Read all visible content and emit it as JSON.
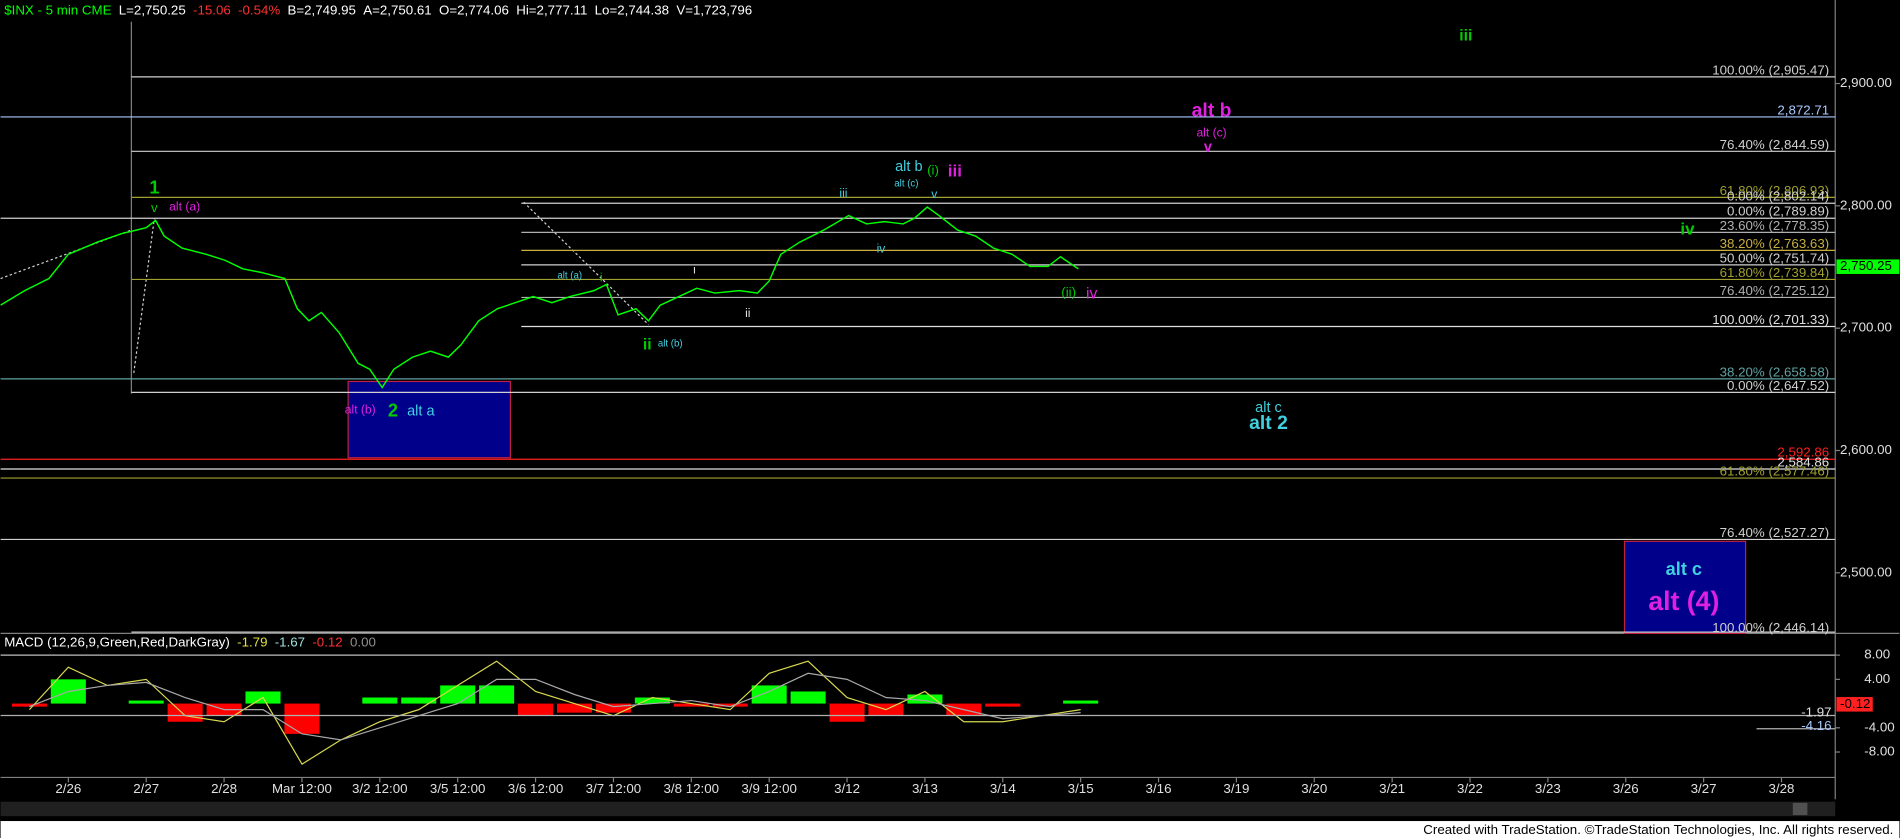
{
  "chart_data": [
    {
      "type": "line",
      "header": [
        {
          "text": "$INX - 5 min CME",
          "color": "#00ff00"
        },
        {
          "text": "L=2,750.25",
          "color": "#ffffff"
        },
        {
          "text": "-15.06",
          "color": "#ff3030"
        },
        {
          "text": "-0.54%",
          "color": "#ff3030"
        },
        {
          "text": "B=2,749.95",
          "color": "#ffffff"
        },
        {
          "text": "A=2,750.61",
          "color": "#ffffff"
        },
        {
          "text": "O=2,774.06",
          "color": "#ffffff"
        },
        {
          "text": "Hi=2,777.11",
          "color": "#ffffff"
        },
        {
          "text": "Lo=2,744.38",
          "color": "#ffffff"
        },
        {
          "text": "V=1,723,796",
          "color": "#ffffff"
        }
      ],
      "categories": [
        "2/26",
        "2/27",
        "2/28",
        "Mar 12:00",
        "3/2 12:00",
        "3/5 12:00",
        "3/6 12:00",
        "3/7 12:00",
        "3/8 12:00",
        "3/9 12:00",
        "3/12",
        "3/13",
        "3/14",
        "3/15",
        "3/16",
        "3/19",
        "3/20",
        "3/21",
        "3/22",
        "3/23",
        "3/26",
        "3/27",
        "3/28"
      ],
      "xlim": [
        -0.87,
        22.69
      ],
      "ylim": [
        2450.5,
        2968.3
      ],
      "yticks": [
        {
          "value": 2500,
          "label": "2,500.00"
        },
        {
          "value": 2600,
          "label": "2,600.00"
        },
        {
          "value": 2700,
          "label": "2,700.00"
        },
        {
          "value": 2800,
          "label": "2,800.00"
        },
        {
          "value": 2900,
          "label": "2,900.00"
        }
      ],
      "color": "#00ff00",
      "x": [
        -0.87,
        -0.56,
        -0.25,
        0,
        0.37,
        0.68,
        1.0,
        1.12,
        1.23,
        1.46,
        1.77,
        2.01,
        2.24,
        2.47,
        2.78,
        2.94,
        3.09,
        3.25,
        3.48,
        3.72,
        3.87,
        4.03,
        4.18,
        4.42,
        4.65,
        4.88,
        5.04,
        5.27,
        5.51,
        5.74,
        5.97,
        6.21,
        6.44,
        6.75,
        6.91,
        7.06,
        7.29,
        7.45,
        7.6,
        7.84,
        8.07,
        8.3,
        8.62,
        8.85,
        9.0,
        9.15,
        9.39,
        9.7,
        10.02,
        10.25,
        10.48,
        10.72,
        10.87,
        11.03,
        11.18,
        11.42,
        11.65,
        11.88,
        12.12,
        12.35,
        12.58,
        12.74,
        12.97
      ],
      "values": [
        2718.8,
        2730.7,
        2740.6,
        2760.4,
        2770.3,
        2777.2,
        2782.2,
        2788.1,
        2775.3,
        2765.4,
        2760.4,
        2755.5,
        2748.5,
        2745.6,
        2740.6,
        2715.9,
        2706,
        2712.9,
        2696.1,
        2671.3,
        2666.4,
        2651.5,
        2666.4,
        2676.3,
        2681.2,
        2676.3,
        2686.2,
        2706,
        2715.9,
        2720.8,
        2725.8,
        2720.8,
        2725.8,
        2730.7,
        2735.7,
        2710.9,
        2715.9,
        2706,
        2718.8,
        2725.8,
        2732.7,
        2728.7,
        2730.7,
        2728.7,
        2738.6,
        2760.4,
        2770.3,
        2780.2,
        2792.1,
        2785.2,
        2787.1,
        2785.2,
        2790.1,
        2799,
        2792.1,
        2780.2,
        2775.3,
        2765.4,
        2760.4,
        2750.5,
        2750.5,
        2758.4,
        2748.5
      ],
      "fib_levels": [
        {
          "label": "100.00% (2,905.47)",
          "value": 2905.47,
          "color": "#d0d0d0"
        },
        {
          "label": "2,872.71",
          "value": 2872.71,
          "color": "#a8c8ff"
        },
        {
          "label": "76.40% (2,844.59)",
          "value": 2844.59,
          "color": "#d0d0d0"
        },
        {
          "label": "61.80% (2,806.93)",
          "value": 2806.93,
          "color": "#a0a030"
        },
        {
          "label": "0.00% (2,802.14)",
          "value": 2802.14,
          "color": "#d0d0d0"
        },
        {
          "label": "0.00% (2,789.89)",
          "value": 2789.89,
          "color": "#d0d0d0"
        },
        {
          "label": "23.60% (2,778.35)",
          "value": 2778.35,
          "color": "#b0b0b0"
        },
        {
          "label": "38.20% (2,763.63)",
          "value": 2763.63,
          "color": "#c8b040"
        },
        {
          "label": "50.00% (2,751.74)",
          "value": 2751.74,
          "color": "#d0d0d0"
        },
        {
          "label": "61.80% (2,739.84)",
          "value": 2739.84,
          "color": "#a0a030"
        },
        {
          "label": "76.40% (2,725.12)",
          "value": 2725.12,
          "color": "#b0b0b0"
        },
        {
          "label": "100.00% (2,701.33)",
          "value": 2701.33,
          "color": "#e0e0e0"
        },
        {
          "label": "38.20% (2,658.58)",
          "value": 2658.58,
          "color": "#60a0a0"
        },
        {
          "label": "0.00% (2,647.52)",
          "value": 2647.52,
          "color": "#d0d0d0"
        },
        {
          "label": "2,592.86",
          "value": 2592.86,
          "color": "#ff2020"
        },
        {
          "label": "2,584.86",
          "value": 2584.86,
          "color": "#e0e0e0"
        },
        {
          "label": "61.80% (2,577.46)",
          "value": 2577.46,
          "color": "#a0a030"
        },
        {
          "label": "76.40% (2,527.27)",
          "value": 2527.27,
          "color": "#d0d0d0"
        },
        {
          "label": "100.00% (2,446.14)",
          "value": 2446.14,
          "color": "#d0d0d0"
        }
      ],
      "last_price": {
        "value": 2750.25,
        "label": "2,750.25"
      },
      "annotations": [
        {
          "text": "iii",
          "color": "#00cc00"
        },
        {
          "text": "alt b",
          "color": "#e020e0"
        },
        {
          "text": "alt (c)",
          "color": "#e020e0"
        },
        {
          "text": "v",
          "color": "#e020e0"
        },
        {
          "text": "1",
          "color": "#00cc00"
        },
        {
          "text": "v",
          "color": "#00cc00"
        },
        {
          "text": "alt (a)",
          "color": "#e020e0"
        },
        {
          "text": "alt b",
          "color": "#40d0e0"
        },
        {
          "text": "(i)",
          "color": "#00cc00"
        },
        {
          "text": "iii",
          "color": "#e020e0"
        },
        {
          "text": "alt (c)",
          "color": "#40d0e0"
        },
        {
          "text": "v",
          "color": "#40d0e0"
        },
        {
          "text": "iii",
          "color": "#40d0e0"
        },
        {
          "text": "iv",
          "color": "#40d0e0"
        },
        {
          "text": "i",
          "color": "#e0e0e0"
        },
        {
          "text": "alt (a)",
          "color": "#40d0e0"
        },
        {
          "text": "i",
          "color": "#00cc00"
        },
        {
          "text": "ii",
          "color": "#e0e0e0"
        },
        {
          "text": "ii",
          "color": "#00cc00"
        },
        {
          "text": "alt (b)",
          "color": "#40d0e0"
        },
        {
          "text": "(ii)",
          "color": "#00cc00"
        },
        {
          "text": "iv",
          "color": "#e020e0"
        },
        {
          "text": "iv",
          "color": "#00cc00"
        },
        {
          "text": "alt c",
          "color": "#40d0e0"
        },
        {
          "text": "alt 2",
          "color": "#40d0e0"
        },
        {
          "text": "alt (b)",
          "color": "#e020e0"
        },
        {
          "text": "2",
          "color": "#00cc00"
        },
        {
          "text": "alt a",
          "color": "#40d0e0"
        },
        {
          "text": "alt c",
          "color": "#40d0e0"
        },
        {
          "text": "alt (4)",
          "color": "#e020e0"
        }
      ],
      "footer": "Created with TradeStation. ©TradeStation Technologies, Inc. All rights reserved."
    },
    {
      "type": "macd",
      "header": [
        {
          "text": "MACD (12,26,9,Green,Red,DarkGray)",
          "color": "#ffffff"
        },
        {
          "text": "-1.79",
          "color": "#e0e040"
        },
        {
          "text": "-1.67",
          "color": "#a0e0e0"
        },
        {
          "text": "-0.12",
          "color": "#ff3030"
        },
        {
          "text": "0.00",
          "color": "#909090"
        }
      ],
      "x": [
        -0.5,
        0,
        0.5,
        1,
        1.5,
        2,
        2.5,
        3,
        3.5,
        4,
        4.5,
        5,
        5.5,
        6,
        6.5,
        7,
        7.5,
        8,
        8.5,
        9,
        9.5,
        10,
        10.5,
        11,
        11.5,
        12,
        12.5,
        13
      ],
      "series": [
        {
          "color": "#d8d850",
          "values": [
            -1,
            6,
            3,
            4,
            -2,
            -3,
            1,
            -10,
            -6,
            -3,
            -1,
            3,
            7,
            2,
            0,
            -2,
            1,
            0,
            -1,
            5,
            7,
            1,
            -1,
            2,
            -3,
            -3,
            -2,
            -1
          ]
        },
        {
          "color": "#a8a8a8",
          "values": [
            -0.5,
            2,
            3,
            3.5,
            1,
            -1,
            -1,
            -5,
            -6,
            -4,
            -2,
            0,
            4,
            4,
            1.5,
            -0.5,
            0,
            0.5,
            -0.5,
            2,
            5,
            4,
            1,
            0.5,
            -1,
            -2.5,
            -2,
            -1.5
          ]
        }
      ],
      "hist_values": [
        -0.5,
        4,
        0,
        0.5,
        -3,
        -2,
        2,
        -5,
        0,
        1,
        1,
        3,
        3,
        -2,
        -1.5,
        -1.5,
        1,
        -0.5,
        -0.5,
        3,
        2,
        -3,
        -2,
        1.5,
        -2,
        -0.5,
        0,
        0.5
      ],
      "up_color": "#00ff00",
      "down_color": "#ff0000",
      "ylim": [
        -14.8,
        11.2
      ],
      "yticks": [
        {
          "value": 8,
          "label": "8.00"
        },
        {
          "value": 4,
          "label": "4.00"
        },
        {
          "value": -4,
          "label": "-4.00"
        },
        {
          "value": -8,
          "label": "-8.00"
        }
      ],
      "right_labels": [
        {
          "value": -1.97,
          "label": "-1.97",
          "color": "#e0e0e0"
        },
        {
          "value": -0.12,
          "label": "-0.12",
          "color": "#ff2020"
        },
        {
          "value": -4.16,
          "label": "-4.16",
          "color": "#a8c8ff"
        }
      ]
    }
  ]
}
